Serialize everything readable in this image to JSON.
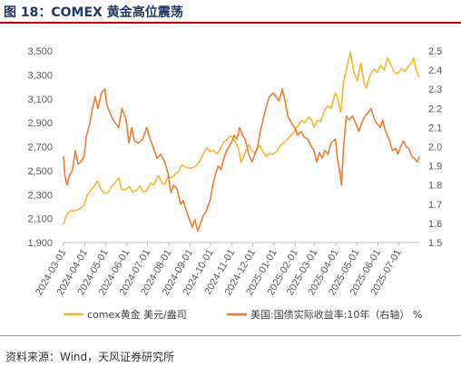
{
  "figure": {
    "title": "图 18：COMEX 黄金高位震荡",
    "source": "资料来源：Wind，天风证券研究所"
  },
  "chart_data": {
    "type": "line",
    "title": "图 18：COMEX 黄金高位震荡",
    "x_ticks": [
      "2024-03-01",
      "2024-04-01",
      "2024-05-01",
      "2024-06-01",
      "2024-07-01",
      "2024-08-01",
      "2024-09-01",
      "2024-10-01",
      "2024-11-01",
      "2024-12-01",
      "2025-01-01",
      "2025-02-01",
      "2025-03-01",
      "2025-04-01",
      "2025-05-01",
      "2025-06-01",
      "2025-07-01"
    ],
    "x_range": [
      "2024-03-01",
      "2025-07-31"
    ],
    "y_left": {
      "ticks": [
        "1,900",
        "2,100",
        "2,300",
        "2,500",
        "2,700",
        "2,900",
        "3,100",
        "3,300",
        "3,500"
      ],
      "ylim": [
        1900,
        3500
      ]
    },
    "y_right": {
      "ticks": [
        "1.5",
        "1.6",
        "1.7",
        "1.8",
        "1.9",
        "2.0",
        "2.1",
        "2.2",
        "2.3",
        "2.4",
        "2.5"
      ],
      "ylim": [
        1.5,
        2.5
      ]
    },
    "legend_position": "bottom",
    "grid": false,
    "series": [
      {
        "name": "comex黄金 美元/盎司",
        "axis": "left",
        "color": "#f5b731",
        "points": [
          [
            "2024-03-01",
            2050
          ],
          [
            "2024-03-05",
            2125
          ],
          [
            "2024-03-10",
            2160
          ],
          [
            "2024-03-15",
            2165
          ],
          [
            "2024-03-20",
            2170
          ],
          [
            "2024-03-25",
            2185
          ],
          [
            "2024-03-31",
            2210
          ],
          [
            "2024-04-05",
            2300
          ],
          [
            "2024-04-10",
            2340
          ],
          [
            "2024-04-15",
            2370
          ],
          [
            "2024-04-19",
            2415
          ],
          [
            "2024-04-25",
            2340
          ],
          [
            "2024-04-30",
            2310
          ],
          [
            "2024-05-05",
            2320
          ],
          [
            "2024-05-10",
            2370
          ],
          [
            "2024-05-15",
            2400
          ],
          [
            "2024-05-20",
            2440
          ],
          [
            "2024-05-25",
            2340
          ],
          [
            "2024-05-31",
            2345
          ],
          [
            "2024-06-05",
            2365
          ],
          [
            "2024-06-10",
            2320
          ],
          [
            "2024-06-15",
            2335
          ],
          [
            "2024-06-20",
            2370
          ],
          [
            "2024-06-25",
            2320
          ],
          [
            "2024-06-30",
            2330
          ],
          [
            "2024-07-05",
            2395
          ],
          [
            "2024-07-10",
            2380
          ],
          [
            "2024-07-17",
            2460
          ],
          [
            "2024-07-22",
            2400
          ],
          [
            "2024-07-26",
            2385
          ],
          [
            "2024-07-31",
            2450
          ],
          [
            "2024-08-05",
            2440
          ],
          [
            "2024-08-10",
            2470
          ],
          [
            "2024-08-15",
            2490
          ],
          [
            "2024-08-20",
            2550
          ],
          [
            "2024-08-25",
            2530
          ],
          [
            "2024-08-31",
            2520
          ],
          [
            "2024-09-05",
            2525
          ],
          [
            "2024-09-10",
            2540
          ],
          [
            "2024-09-15",
            2580
          ],
          [
            "2024-09-20",
            2640
          ],
          [
            "2024-09-25",
            2690
          ],
          [
            "2024-09-30",
            2660
          ],
          [
            "2024-10-05",
            2670
          ],
          [
            "2024-10-10",
            2640
          ],
          [
            "2024-10-15",
            2680
          ],
          [
            "2024-10-20",
            2740
          ],
          [
            "2024-10-25",
            2760
          ],
          [
            "2024-10-30",
            2790
          ],
          [
            "2024-11-05",
            2750
          ],
          [
            "2024-11-10",
            2690
          ],
          [
            "2024-11-14",
            2570
          ],
          [
            "2024-11-20",
            2650
          ],
          [
            "2024-11-25",
            2720
          ],
          [
            "2024-11-30",
            2660
          ],
          [
            "2024-12-05",
            2650
          ],
          [
            "2024-12-10",
            2710
          ],
          [
            "2024-12-15",
            2670
          ],
          [
            "2024-12-20",
            2620
          ],
          [
            "2024-12-25",
            2640
          ],
          [
            "2024-12-31",
            2640
          ],
          [
            "2025-01-05",
            2660
          ],
          [
            "2025-01-10",
            2710
          ],
          [
            "2025-01-15",
            2730
          ],
          [
            "2025-01-20",
            2760
          ],
          [
            "2025-01-25",
            2790
          ],
          [
            "2025-01-31",
            2830
          ],
          [
            "2025-02-05",
            2880
          ],
          [
            "2025-02-10",
            2920
          ],
          [
            "2025-02-15",
            2900
          ],
          [
            "2025-02-20",
            2950
          ],
          [
            "2025-02-25",
            2920
          ],
          [
            "2025-02-28",
            2860
          ],
          [
            "2025-03-05",
            2920
          ],
          [
            "2025-03-10",
            2910
          ],
          [
            "2025-03-15",
            3000
          ],
          [
            "2025-03-20",
            3040
          ],
          [
            "2025-03-25",
            3020
          ],
          [
            "2025-03-31",
            3150
          ],
          [
            "2025-04-03",
            3110
          ],
          [
            "2025-04-08",
            2990
          ],
          [
            "2025-04-12",
            3240
          ],
          [
            "2025-04-16",
            3340
          ],
          [
            "2025-04-22",
            3490
          ],
          [
            "2025-04-27",
            3320
          ],
          [
            "2025-05-02",
            3250
          ],
          [
            "2025-05-07",
            3400
          ],
          [
            "2025-05-12",
            3230
          ],
          [
            "2025-05-15",
            3190
          ],
          [
            "2025-05-20",
            3290
          ],
          [
            "2025-05-26",
            3350
          ],
          [
            "2025-05-31",
            3320
          ],
          [
            "2025-06-05",
            3380
          ],
          [
            "2025-06-10",
            3340
          ],
          [
            "2025-06-15",
            3440
          ],
          [
            "2025-06-20",
            3380
          ],
          [
            "2025-06-25",
            3320
          ],
          [
            "2025-06-30",
            3310
          ],
          [
            "2025-07-05",
            3350
          ],
          [
            "2025-07-10",
            3330
          ],
          [
            "2025-07-15",
            3370
          ],
          [
            "2025-07-20",
            3400
          ],
          [
            "2025-07-23",
            3440
          ],
          [
            "2025-07-27",
            3330
          ],
          [
            "2025-07-31",
            3280
          ]
        ]
      },
      {
        "name": "美国:国债实际收益率:10年（右轴） %",
        "axis": "right",
        "color": "#ed7d31",
        "points": [
          [
            "2024-03-01",
            1.95
          ],
          [
            "2024-03-03",
            1.85
          ],
          [
            "2024-03-06",
            1.8
          ],
          [
            "2024-03-10",
            1.85
          ],
          [
            "2024-03-14",
            1.88
          ],
          [
            "2024-03-18",
            1.98
          ],
          [
            "2024-03-22",
            1.91
          ],
          [
            "2024-03-26",
            1.92
          ],
          [
            "2024-03-31",
            1.95
          ],
          [
            "2024-04-03",
            2.05
          ],
          [
            "2024-04-08",
            2.12
          ],
          [
            "2024-04-12",
            2.2
          ],
          [
            "2024-04-16",
            2.26
          ],
          [
            "2024-04-20",
            2.2
          ],
          [
            "2024-04-25",
            2.28
          ],
          [
            "2024-04-30",
            2.3
          ],
          [
            "2024-05-03",
            2.22
          ],
          [
            "2024-05-07",
            2.18
          ],
          [
            "2024-05-12",
            2.14
          ],
          [
            "2024-05-16",
            2.12
          ],
          [
            "2024-05-20",
            2.1
          ],
          [
            "2024-05-25",
            2.2
          ],
          [
            "2024-05-31",
            2.14
          ],
          [
            "2024-06-04",
            2.02
          ],
          [
            "2024-06-08",
            2.1
          ],
          [
            "2024-06-12",
            2.03
          ],
          [
            "2024-06-18",
            2.02
          ],
          [
            "2024-06-24",
            2.04
          ],
          [
            "2024-06-30",
            2.1
          ],
          [
            "2024-07-04",
            2.05
          ],
          [
            "2024-07-10",
            1.99
          ],
          [
            "2024-07-15",
            1.94
          ],
          [
            "2024-07-20",
            1.96
          ],
          [
            "2024-07-26",
            1.92
          ],
          [
            "2024-07-31",
            1.86
          ],
          [
            "2024-08-04",
            1.76
          ],
          [
            "2024-08-08",
            1.8
          ],
          [
            "2024-08-13",
            1.78
          ],
          [
            "2024-08-18",
            1.7
          ],
          [
            "2024-08-22",
            1.72
          ],
          [
            "2024-08-27",
            1.66
          ],
          [
            "2024-08-31",
            1.62
          ],
          [
            "2024-09-04",
            1.58
          ],
          [
            "2024-09-08",
            1.62
          ],
          [
            "2024-09-12",
            1.56
          ],
          [
            "2024-09-16",
            1.6
          ],
          [
            "2024-09-20",
            1.64
          ],
          [
            "2024-09-24",
            1.66
          ],
          [
            "2024-09-30",
            1.72
          ],
          [
            "2024-10-04",
            1.8
          ],
          [
            "2024-10-08",
            1.86
          ],
          [
            "2024-10-12",
            1.9
          ],
          [
            "2024-10-16",
            1.88
          ],
          [
            "2024-10-20",
            1.94
          ],
          [
            "2024-10-24",
            1.98
          ],
          [
            "2024-10-31",
            2.02
          ],
          [
            "2024-11-04",
            2.06
          ],
          [
            "2024-11-08",
            2.04
          ],
          [
            "2024-11-12",
            2.1
          ],
          [
            "2024-11-16",
            2.06
          ],
          [
            "2024-11-20",
            2.04
          ],
          [
            "2024-11-25",
            1.96
          ],
          [
            "2024-11-30",
            1.92
          ],
          [
            "2024-12-04",
            1.96
          ],
          [
            "2024-12-08",
            2.0
          ],
          [
            "2024-12-12",
            2.08
          ],
          [
            "2024-12-16",
            2.14
          ],
          [
            "2024-12-20",
            2.2
          ],
          [
            "2024-12-25",
            2.26
          ],
          [
            "2024-12-31",
            2.28
          ],
          [
            "2025-01-04",
            2.26
          ],
          [
            "2025-01-08",
            2.24
          ],
          [
            "2025-01-13",
            2.3
          ],
          [
            "2025-01-17",
            2.24
          ],
          [
            "2025-01-21",
            2.16
          ],
          [
            "2025-01-27",
            2.12
          ],
          [
            "2025-01-31",
            2.1
          ],
          [
            "2025-02-04",
            2.06
          ],
          [
            "2025-02-09",
            2.08
          ],
          [
            "2025-02-14",
            2.05
          ],
          [
            "2025-02-19",
            2.04
          ],
          [
            "2025-02-24",
            2.0
          ],
          [
            "2025-02-28",
            1.98
          ],
          [
            "2025-03-04",
            1.92
          ],
          [
            "2025-03-08",
            1.97
          ],
          [
            "2025-03-12",
            1.94
          ],
          [
            "2025-03-16",
            1.98
          ],
          [
            "2025-03-20",
            1.96
          ],
          [
            "2025-03-25",
            2.02
          ],
          [
            "2025-03-31",
            2.04
          ],
          [
            "2025-04-03",
            1.94
          ],
          [
            "2025-04-06",
            1.88
          ],
          [
            "2025-04-09",
            1.8
          ],
          [
            "2025-04-12",
            2.0
          ],
          [
            "2025-04-16",
            2.16
          ],
          [
            "2025-04-20",
            2.14
          ],
          [
            "2025-04-25",
            2.16
          ],
          [
            "2025-04-30",
            2.12
          ],
          [
            "2025-05-04",
            2.08
          ],
          [
            "2025-05-08",
            2.12
          ],
          [
            "2025-05-13",
            2.16
          ],
          [
            "2025-05-18",
            2.18
          ],
          [
            "2025-05-22",
            2.2
          ],
          [
            "2025-05-27",
            2.14
          ],
          [
            "2025-05-31",
            2.12
          ],
          [
            "2025-06-04",
            2.1
          ],
          [
            "2025-06-08",
            2.14
          ],
          [
            "2025-06-12",
            2.08
          ],
          [
            "2025-06-17",
            2.04
          ],
          [
            "2025-06-22",
            1.98
          ],
          [
            "2025-06-27",
            1.99
          ],
          [
            "2025-06-30",
            1.96
          ],
          [
            "2025-07-04",
            2.0
          ],
          [
            "2025-07-08",
            2.03
          ],
          [
            "2025-07-12",
            2.0
          ],
          [
            "2025-07-16",
            1.99
          ],
          [
            "2025-07-20",
            1.95
          ],
          [
            "2025-07-24",
            1.94
          ],
          [
            "2025-07-28",
            1.92
          ],
          [
            "2025-07-31",
            1.95
          ]
        ]
      }
    ]
  }
}
